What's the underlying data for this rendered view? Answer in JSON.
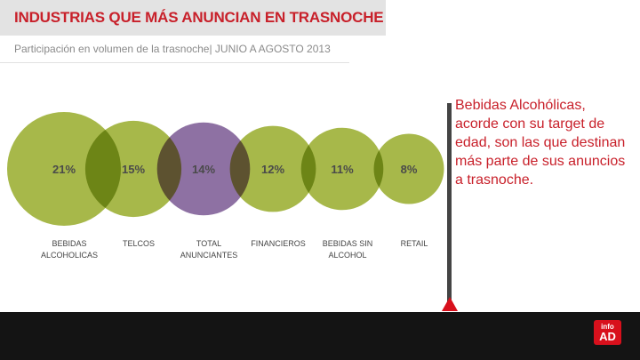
{
  "header": {
    "title": "INDUSTRIAS QUE MÁS ANUNCIAN EN TRASNOCHE",
    "subtitle": "Participación en volumen de la trasnoche| JUNIO A AGOSTO 2013"
  },
  "chart_data": {
    "type": "bubble",
    "title": "INDUSTRIAS QUE MÁS ANUNCIAN EN TRASNOCHE",
    "subtitle": "Participación en volumen de la trasnoche| JUNIO A AGOSTO 2013",
    "categories": [
      "BEBIDAS\nALCOHOLICAS",
      "TELCOS",
      "TOTAL\nANUNCIANTES",
      "FINANCIEROS",
      "BEBIDAS SIN\nALCOHOL",
      "RETAIL"
    ],
    "values": [
      21,
      15,
      14,
      12,
      11,
      8
    ],
    "labels": [
      "21%",
      "15%",
      "14%",
      "12%",
      "11%",
      "8%"
    ],
    "highlight": "TOTAL\nANUNCIANTES",
    "colors": {
      "default": "#a7b84a",
      "highlight": "#8e71a3"
    }
  },
  "annotation": {
    "text": "Bebidas Alcohólicas, acorde con su target de edad, son las que destinan más parte de sus anuncios a trasnoche."
  },
  "logo": {
    "line1": "info",
    "line2": "AD"
  }
}
